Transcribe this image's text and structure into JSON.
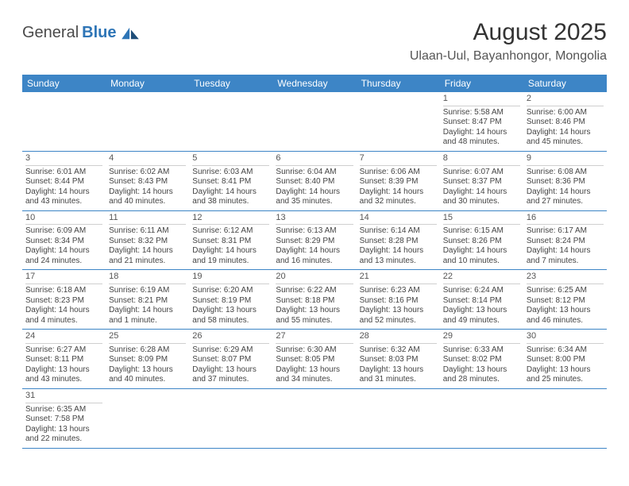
{
  "logo": {
    "text1": "General",
    "text2": "Blue"
  },
  "title": "August 2025",
  "location": "Ulaan-Uul, Bayanhongor, Mongolia",
  "theme": {
    "header_bg": "#3d85c6",
    "border_color": "#3d85c6",
    "text_color": "#333333"
  },
  "dayHeaders": [
    "Sunday",
    "Monday",
    "Tuesday",
    "Wednesday",
    "Thursday",
    "Friday",
    "Saturday"
  ],
  "weeks": [
    [
      null,
      null,
      null,
      null,
      null,
      {
        "n": "1",
        "sr": "Sunrise: 5:58 AM",
        "ss": "Sunset: 8:47 PM",
        "d1": "Daylight: 14 hours",
        "d2": "and 48 minutes."
      },
      {
        "n": "2",
        "sr": "Sunrise: 6:00 AM",
        "ss": "Sunset: 8:46 PM",
        "d1": "Daylight: 14 hours",
        "d2": "and 45 minutes."
      }
    ],
    [
      {
        "n": "3",
        "sr": "Sunrise: 6:01 AM",
        "ss": "Sunset: 8:44 PM",
        "d1": "Daylight: 14 hours",
        "d2": "and 43 minutes."
      },
      {
        "n": "4",
        "sr": "Sunrise: 6:02 AM",
        "ss": "Sunset: 8:43 PM",
        "d1": "Daylight: 14 hours",
        "d2": "and 40 minutes."
      },
      {
        "n": "5",
        "sr": "Sunrise: 6:03 AM",
        "ss": "Sunset: 8:41 PM",
        "d1": "Daylight: 14 hours",
        "d2": "and 38 minutes."
      },
      {
        "n": "6",
        "sr": "Sunrise: 6:04 AM",
        "ss": "Sunset: 8:40 PM",
        "d1": "Daylight: 14 hours",
        "d2": "and 35 minutes."
      },
      {
        "n": "7",
        "sr": "Sunrise: 6:06 AM",
        "ss": "Sunset: 8:39 PM",
        "d1": "Daylight: 14 hours",
        "d2": "and 32 minutes."
      },
      {
        "n": "8",
        "sr": "Sunrise: 6:07 AM",
        "ss": "Sunset: 8:37 PM",
        "d1": "Daylight: 14 hours",
        "d2": "and 30 minutes."
      },
      {
        "n": "9",
        "sr": "Sunrise: 6:08 AM",
        "ss": "Sunset: 8:36 PM",
        "d1": "Daylight: 14 hours",
        "d2": "and 27 minutes."
      }
    ],
    [
      {
        "n": "10",
        "sr": "Sunrise: 6:09 AM",
        "ss": "Sunset: 8:34 PM",
        "d1": "Daylight: 14 hours",
        "d2": "and 24 minutes."
      },
      {
        "n": "11",
        "sr": "Sunrise: 6:11 AM",
        "ss": "Sunset: 8:32 PM",
        "d1": "Daylight: 14 hours",
        "d2": "and 21 minutes."
      },
      {
        "n": "12",
        "sr": "Sunrise: 6:12 AM",
        "ss": "Sunset: 8:31 PM",
        "d1": "Daylight: 14 hours",
        "d2": "and 19 minutes."
      },
      {
        "n": "13",
        "sr": "Sunrise: 6:13 AM",
        "ss": "Sunset: 8:29 PM",
        "d1": "Daylight: 14 hours",
        "d2": "and 16 minutes."
      },
      {
        "n": "14",
        "sr": "Sunrise: 6:14 AM",
        "ss": "Sunset: 8:28 PM",
        "d1": "Daylight: 14 hours",
        "d2": "and 13 minutes."
      },
      {
        "n": "15",
        "sr": "Sunrise: 6:15 AM",
        "ss": "Sunset: 8:26 PM",
        "d1": "Daylight: 14 hours",
        "d2": "and 10 minutes."
      },
      {
        "n": "16",
        "sr": "Sunrise: 6:17 AM",
        "ss": "Sunset: 8:24 PM",
        "d1": "Daylight: 14 hours",
        "d2": "and 7 minutes."
      }
    ],
    [
      {
        "n": "17",
        "sr": "Sunrise: 6:18 AM",
        "ss": "Sunset: 8:23 PM",
        "d1": "Daylight: 14 hours",
        "d2": "and 4 minutes."
      },
      {
        "n": "18",
        "sr": "Sunrise: 6:19 AM",
        "ss": "Sunset: 8:21 PM",
        "d1": "Daylight: 14 hours",
        "d2": "and 1 minute."
      },
      {
        "n": "19",
        "sr": "Sunrise: 6:20 AM",
        "ss": "Sunset: 8:19 PM",
        "d1": "Daylight: 13 hours",
        "d2": "and 58 minutes."
      },
      {
        "n": "20",
        "sr": "Sunrise: 6:22 AM",
        "ss": "Sunset: 8:18 PM",
        "d1": "Daylight: 13 hours",
        "d2": "and 55 minutes."
      },
      {
        "n": "21",
        "sr": "Sunrise: 6:23 AM",
        "ss": "Sunset: 8:16 PM",
        "d1": "Daylight: 13 hours",
        "d2": "and 52 minutes."
      },
      {
        "n": "22",
        "sr": "Sunrise: 6:24 AM",
        "ss": "Sunset: 8:14 PM",
        "d1": "Daylight: 13 hours",
        "d2": "and 49 minutes."
      },
      {
        "n": "23",
        "sr": "Sunrise: 6:25 AM",
        "ss": "Sunset: 8:12 PM",
        "d1": "Daylight: 13 hours",
        "d2": "and 46 minutes."
      }
    ],
    [
      {
        "n": "24",
        "sr": "Sunrise: 6:27 AM",
        "ss": "Sunset: 8:11 PM",
        "d1": "Daylight: 13 hours",
        "d2": "and 43 minutes."
      },
      {
        "n": "25",
        "sr": "Sunrise: 6:28 AM",
        "ss": "Sunset: 8:09 PM",
        "d1": "Daylight: 13 hours",
        "d2": "and 40 minutes."
      },
      {
        "n": "26",
        "sr": "Sunrise: 6:29 AM",
        "ss": "Sunset: 8:07 PM",
        "d1": "Daylight: 13 hours",
        "d2": "and 37 minutes."
      },
      {
        "n": "27",
        "sr": "Sunrise: 6:30 AM",
        "ss": "Sunset: 8:05 PM",
        "d1": "Daylight: 13 hours",
        "d2": "and 34 minutes."
      },
      {
        "n": "28",
        "sr": "Sunrise: 6:32 AM",
        "ss": "Sunset: 8:03 PM",
        "d1": "Daylight: 13 hours",
        "d2": "and 31 minutes."
      },
      {
        "n": "29",
        "sr": "Sunrise: 6:33 AM",
        "ss": "Sunset: 8:02 PM",
        "d1": "Daylight: 13 hours",
        "d2": "and 28 minutes."
      },
      {
        "n": "30",
        "sr": "Sunrise: 6:34 AM",
        "ss": "Sunset: 8:00 PM",
        "d1": "Daylight: 13 hours",
        "d2": "and 25 minutes."
      }
    ],
    [
      {
        "n": "31",
        "sr": "Sunrise: 6:35 AM",
        "ss": "Sunset: 7:58 PM",
        "d1": "Daylight: 13 hours",
        "d2": "and 22 minutes."
      },
      null,
      null,
      null,
      null,
      null,
      null
    ]
  ]
}
